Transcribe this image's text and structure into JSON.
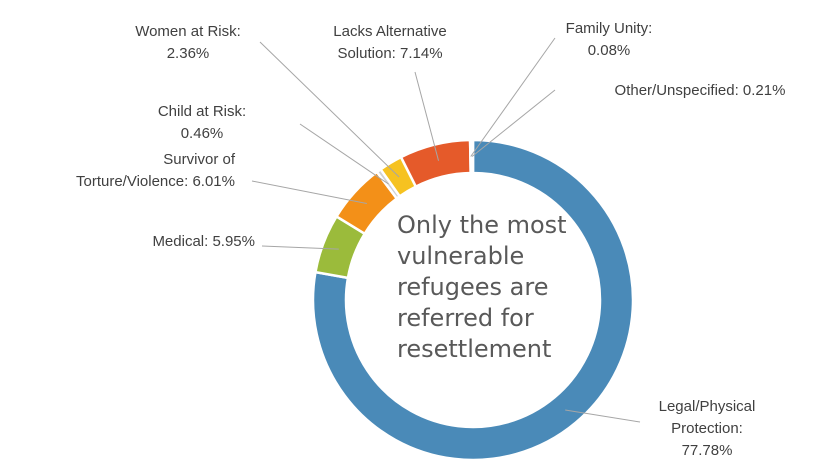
{
  "chart_data": {
    "type": "pie",
    "variant": "donut",
    "categories": [
      "Legal/Physical Protection",
      "Medical",
      "Survivor of Torture/Violence",
      "Child at Risk",
      "Women at Risk",
      "Lacks Alternative Solution",
      "Family Unity",
      "Other/Unspecified"
    ],
    "values": [
      77.78,
      5.95,
      6.01,
      0.46,
      2.36,
      7.14,
      0.08,
      0.21
    ],
    "colors": [
      "#4a8ab8",
      "#9bbb3b",
      "#f39018",
      "#d1d1d1",
      "#f6c220",
      "#e55a2a",
      "#a6a6a6",
      "#a6a6a6"
    ],
    "labels": [
      [
        "Legal/Physical",
        "Protection:",
        "77.78%"
      ],
      [
        "Medical: 5.95%"
      ],
      [
        "Survivor of",
        "Torture/Violence: 6.01%"
      ],
      [
        "Child at Risk:",
        "0.46%"
      ],
      [
        "Women at Risk:",
        "2.36%"
      ],
      [
        "Lacks Alternative",
        "Solution: 7.14%"
      ],
      [
        "Family Unity:",
        "0.08%"
      ],
      [
        "Other/Unspecified: 0.21%"
      ]
    ],
    "center_text": [
      "Only the most",
      "vulnerable",
      "refugees are",
      "referred for",
      "resettlement"
    ]
  }
}
